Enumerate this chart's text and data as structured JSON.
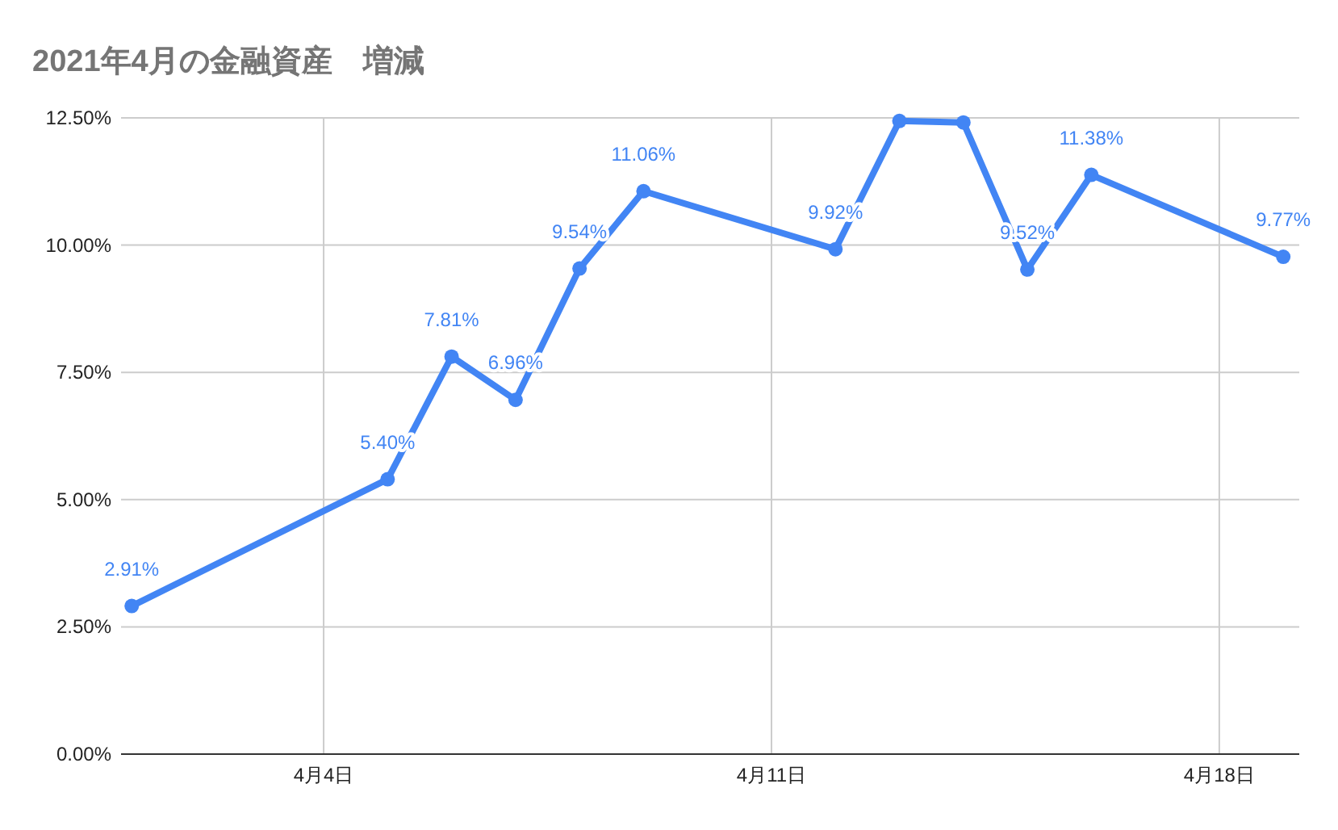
{
  "chart_data": {
    "type": "line",
    "title": "2021年4月の金融資産　増減",
    "x": [
      "2021-04-01",
      "2021-04-05",
      "2021-04-06",
      "2021-04-07",
      "2021-04-08",
      "2021-04-09",
      "2021-04-12",
      "2021-04-13",
      "2021-04-14",
      "2021-04-15",
      "2021-04-16",
      "2021-04-19"
    ],
    "series": [
      {
        "color": "#4285f4",
        "values": [
          2.91,
          5.4,
          7.81,
          6.96,
          9.54,
          11.06,
          9.92,
          12.44,
          12.41,
          9.52,
          11.38,
          9.77
        ],
        "value_labels": [
          "2.91%",
          "5.40%",
          "7.81%",
          "6.96%",
          "9.54%",
          "11.06%",
          "9.92%",
          null,
          null,
          "9.52%",
          "11.38%",
          "9.77%"
        ]
      }
    ],
    "xlim": [
      "2021-03-31T20:00",
      "2021-04-19T06:00"
    ],
    "xticks": [
      {
        "value": "2021-04-04",
        "label": "4月4日"
      },
      {
        "value": "2021-04-11",
        "label": "4月11日"
      },
      {
        "value": "2021-04-18",
        "label": "4月18日"
      }
    ],
    "ylim": [
      0,
      12.5
    ],
    "yticks": [
      {
        "value": 0,
        "label": "0.00%"
      },
      {
        "value": 2.5,
        "label": "2.50%"
      },
      {
        "value": 5,
        "label": "5.00%"
      },
      {
        "value": 7.5,
        "label": "7.50%"
      },
      {
        "value": 10,
        "label": "10.00%"
      },
      {
        "value": 12.5,
        "label": "12.50%"
      }
    ],
    "grid": true,
    "marker": "circle",
    "line_style": "solid"
  }
}
